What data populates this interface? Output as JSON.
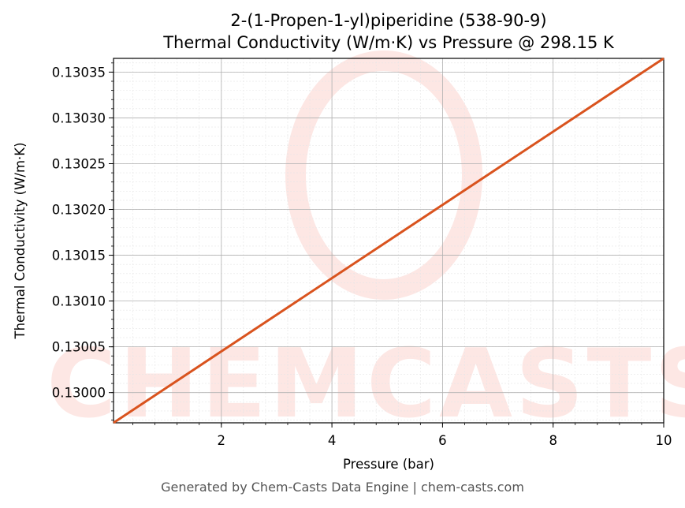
{
  "chart_data": {
    "type": "line",
    "title": "2-(1-Propen-1-yl)piperidine (538-90-9)",
    "subtitle": "Thermal Conductivity (W/m·K) vs Pressure @ 298.15 K",
    "xlabel": "Pressure (bar)",
    "ylabel": "Thermal Conductivity (W/m·K)",
    "xlim": [
      0.05,
      10
    ],
    "ylim": [
      0.129967,
      0.130365
    ],
    "x_ticks": [
      2,
      4,
      6,
      8,
      10
    ],
    "y_ticks": [
      0.13,
      0.13005,
      0.1301,
      0.13015,
      0.1302,
      0.13025,
      0.1303,
      0.13035
    ],
    "y_tick_labels": [
      "0.13000",
      "0.13005",
      "0.13010",
      "0.13015",
      "0.13020",
      "0.13025",
      "0.13030",
      "0.13035"
    ],
    "grid": true,
    "line_color": "#d9531e",
    "series": [
      {
        "x": [
          0.05,
          10
        ],
        "y": [
          0.129967,
          0.130365
        ]
      }
    ],
    "watermark": "CHEMCASTS"
  },
  "footer": "Generated by Chem-Casts Data Engine | chem-casts.com"
}
